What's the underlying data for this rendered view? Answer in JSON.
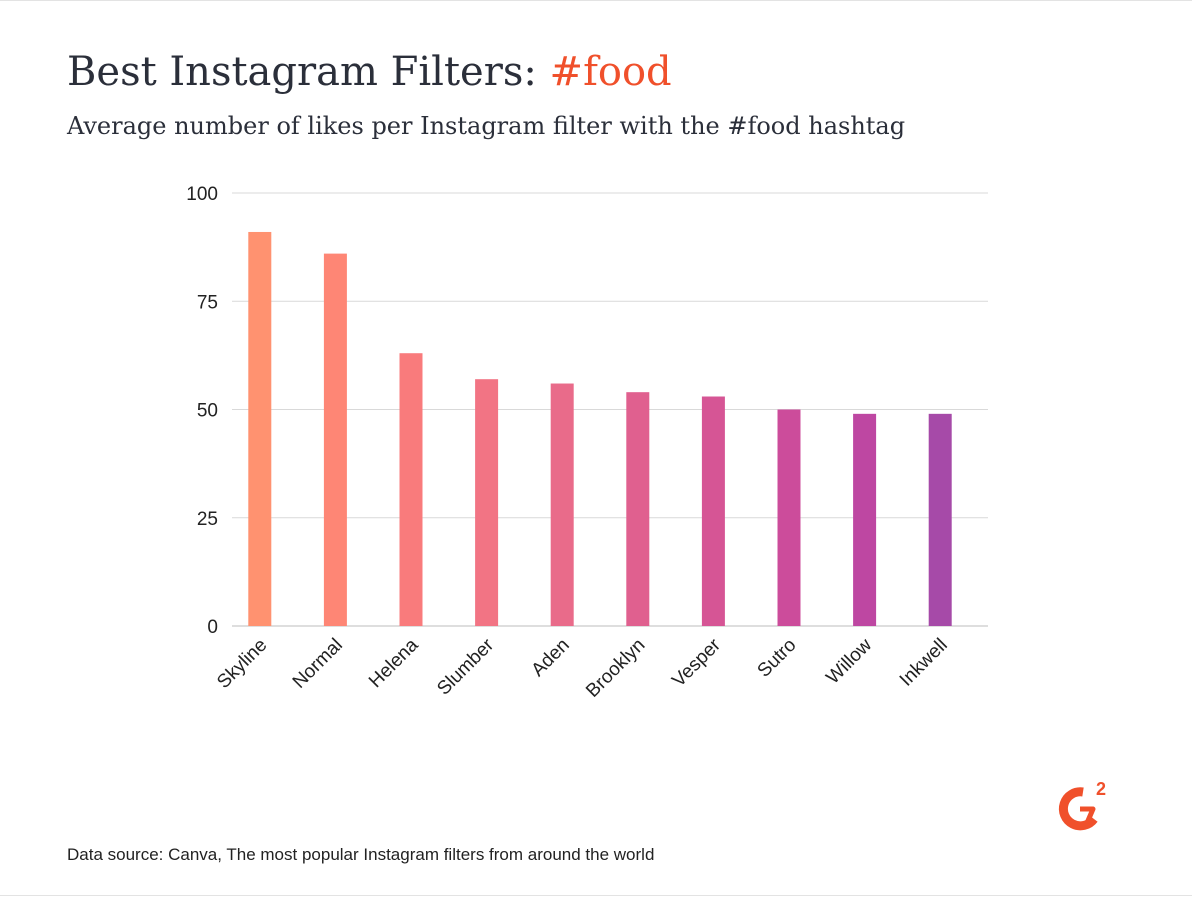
{
  "header": {
    "title_main": "Best Instagram Filters: ",
    "title_accent": "#food",
    "subtitle": "Average number of likes per Instagram filter with the #food hashtag"
  },
  "footer": {
    "source": "Data source: Canva, The most popular Instagram filters from around the world"
  },
  "logo": {
    "icon": "g2-logo-icon",
    "color": "#f0502b"
  },
  "colors": {
    "title_accent": "#f0502b",
    "gridline": "#d9d9d9",
    "bars": [
      "#ff9270",
      "#fe8675",
      "#f97b7c",
      "#f27484",
      "#e96b8a",
      "#e0608f",
      "#d65595",
      "#cc4c9b",
      "#be47a2",
      "#a64aa8"
    ]
  },
  "chart_data": {
    "type": "bar",
    "categories": [
      "Skyline",
      "Normal",
      "Helena",
      "Slumber",
      "Aden",
      "Brooklyn",
      "Vesper",
      "Sutro",
      "Willow",
      "Inkwell"
    ],
    "values": [
      91,
      86,
      63,
      57,
      56,
      54,
      53,
      50,
      49,
      49
    ],
    "title": "Best Instagram Filters: #food",
    "subtitle": "Average number of likes per Instagram filter with the #food hashtag",
    "xlabel": "",
    "ylabel": "",
    "ylim": [
      0,
      100
    ],
    "yticks": [
      0,
      25,
      50,
      75,
      100
    ],
    "grid": true,
    "legend": "none"
  }
}
